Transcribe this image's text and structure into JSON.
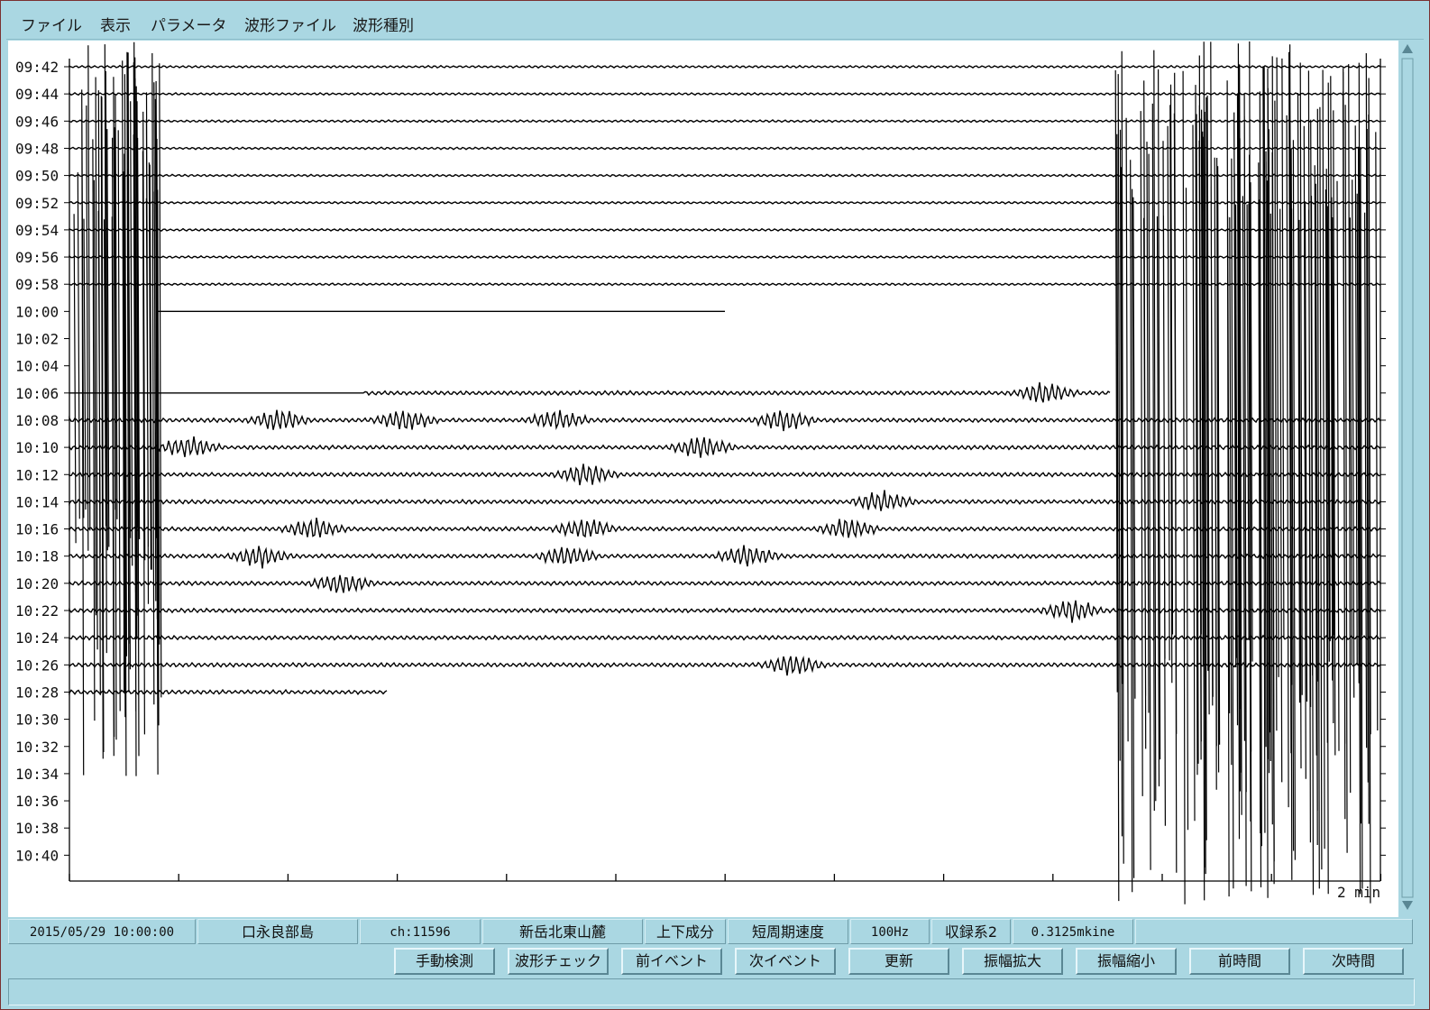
{
  "menu": [
    "ファイル",
    "表示",
    "パラメータ",
    "波形ファイル",
    "波形種別"
  ],
  "time_labels": [
    "09:42",
    "09:44",
    "09:46",
    "09:48",
    "09:50",
    "09:52",
    "09:54",
    "09:56",
    "09:58",
    "10:00",
    "10:02",
    "10:04",
    "10:06",
    "10:08",
    "10:10",
    "10:12",
    "10:14",
    "10:16",
    "10:18",
    "10:20",
    "10:22",
    "10:24",
    "10:26",
    "10:28",
    "10:30",
    "10:32",
    "10:34",
    "10:36",
    "10:38",
    "10:40"
  ],
  "scale_label": "2 min",
  "status": {
    "datetime": "2015/05/29 10:00:00",
    "station": "口永良部島",
    "channel": "ch:11596",
    "location": "新岳北東山麓",
    "component": "上下成分",
    "sensor": "短周期速度",
    "sampling": "100Hz",
    "recorder": "収録系2",
    "scale": "0.3125mkine"
  },
  "buttons": [
    "手動検測",
    "波形チェック",
    "前イベント",
    "次イベント",
    "更新",
    "振幅拡大",
    "振幅縮小",
    "前時間",
    "次時間"
  ],
  "colors": {
    "panel": "#aad7e2",
    "plot_bg": "#ffffff",
    "trace": "#000000",
    "frame": "#7a3030"
  },
  "icons": {
    "scroll_up": "triangle-up-icon",
    "scroll_down": "triangle-down-icon"
  }
}
